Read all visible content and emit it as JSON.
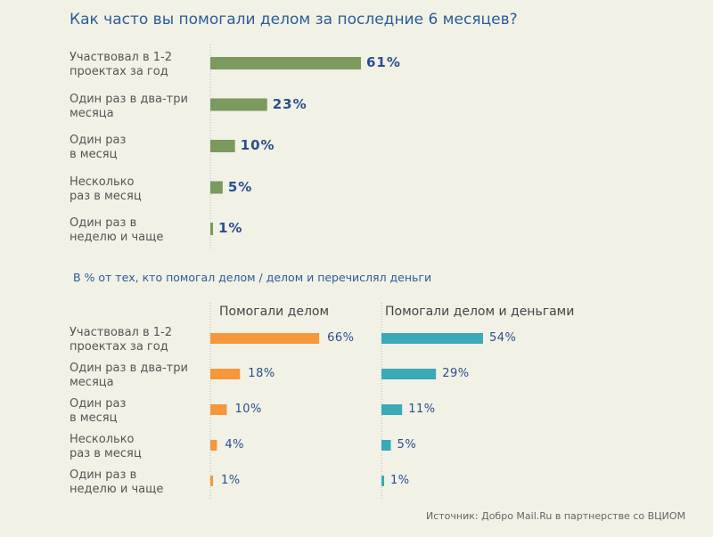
{
  "title": "Как часто вы помогали делом за последние 6 месяцев?",
  "subtitle": "В % от тех, кто помогал делом / делом и перечислял деньги",
  "source": "Источник: Добро Mail.Ru в партнерстве со ВЦИОМ",
  "colors": {
    "background": "#f1f1e6",
    "green": "#7a9a5e",
    "orange": "#f5973a",
    "teal": "#3aa9b8",
    "value_text": "#2a4f8c"
  },
  "chart_data": [
    {
      "type": "bar",
      "orientation": "horizontal",
      "categories": [
        "Участвовал в 1-2\nпроектах за год",
        "Один раз в два-три\nмесяца",
        "Один раз\nв месяц",
        "Несколько\nраз в месяц",
        "Один раз в\nнеделю и чаще"
      ],
      "values": [
        61,
        23,
        10,
        5,
        1
      ],
      "value_labels": [
        "61%",
        "23%",
        "10%",
        "5%",
        "1%"
      ],
      "unit": "%"
    },
    {
      "type": "bar",
      "orientation": "horizontal",
      "categories": [
        "Участвовал в 1-2\nпроектах за год",
        "Один раз в два-три\nмесяца",
        "Один раз\nв месяц",
        "Несколько\nраз в месяц",
        "Один раз в\nнеделю и чаще"
      ],
      "series": [
        {
          "name": "Помогали делом",
          "values": [
            66,
            18,
            10,
            4,
            1
          ],
          "value_labels": [
            "66%",
            "18%",
            "10%",
            "4%",
            "1%"
          ]
        },
        {
          "name": "Помогали делом и деньгами",
          "values": [
            54,
            29,
            11,
            5,
            1
          ],
          "value_labels": [
            "54%",
            "29%",
            "11%",
            "5%",
            "1%"
          ]
        }
      ],
      "unit": "%"
    }
  ]
}
